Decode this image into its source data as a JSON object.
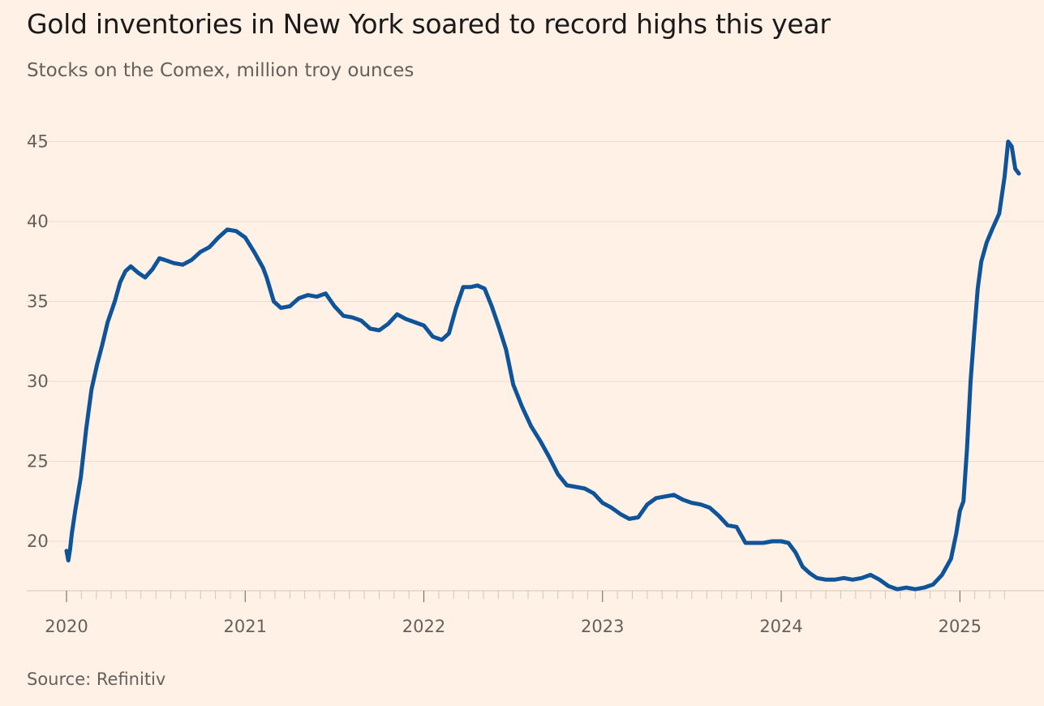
{
  "title": "Gold inventories in New York soared to record highs this year",
  "subtitle": "Stocks on the Comex, million troy ounces",
  "source": "Source: Refinitiv",
  "colors": {
    "background": "#fff1e5",
    "line": "#0f5499",
    "grid": "#e9decf",
    "text": "#66605c"
  },
  "chart_data": {
    "type": "line",
    "title": "Gold inventories in New York soared to record highs this year",
    "subtitle": "Stocks on the Comex, million troy ounces",
    "xlabel": "",
    "ylabel": "",
    "ylim": [
      17,
      45
    ],
    "yticks": [
      20,
      25,
      30,
      35,
      40,
      45
    ],
    "xlim": [
      2020.0,
      2025.33
    ],
    "xticks": [
      {
        "value": 2020,
        "label": "2020"
      },
      {
        "value": 2021,
        "label": "2021"
      },
      {
        "value": 2022,
        "label": "2022"
      },
      {
        "value": 2023,
        "label": "2023"
      },
      {
        "value": 2024,
        "label": "2024"
      },
      {
        "value": 2025,
        "label": "2025"
      }
    ],
    "grid": "horizontal",
    "legend": "none",
    "series": [
      {
        "name": "",
        "x": [
          2020.0,
          2020.01,
          2020.02,
          2020.03,
          2020.05,
          2020.08,
          2020.11,
          2020.14,
          2020.17,
          2020.2,
          2020.23,
          2020.27,
          2020.3,
          2020.33,
          2020.36,
          2020.4,
          2020.44,
          2020.48,
          2020.52,
          2020.55,
          2020.6,
          2020.65,
          2020.7,
          2020.75,
          2020.8,
          2020.85,
          2020.9,
          2020.95,
          2021.0,
          2021.05,
          2021.1,
          2021.12,
          2021.16,
          2021.2,
          2021.25,
          2021.3,
          2021.35,
          2021.4,
          2021.45,
          2021.5,
          2021.55,
          2021.6,
          2021.65,
          2021.7,
          2021.75,
          2021.8,
          2021.85,
          2021.9,
          2021.95,
          2022.0,
          2022.05,
          2022.1,
          2022.14,
          2022.18,
          2022.22,
          2022.26,
          2022.3,
          2022.34,
          2022.38,
          2022.42,
          2022.46,
          2022.5,
          2022.55,
          2022.6,
          2022.65,
          2022.7,
          2022.75,
          2022.8,
          2022.85,
          2022.9,
          2022.95,
          2023.0,
          2023.05,
          2023.1,
          2023.15,
          2023.2,
          2023.25,
          2023.3,
          2023.35,
          2023.4,
          2023.45,
          2023.5,
          2023.55,
          2023.6,
          2023.65,
          2023.7,
          2023.75,
          2023.8,
          2023.85,
          2023.9,
          2023.95,
          2024.0,
          2024.04,
          2024.08,
          2024.12,
          2024.16,
          2024.2,
          2024.25,
          2024.3,
          2024.35,
          2024.4,
          2024.45,
          2024.5,
          2024.55,
          2024.6,
          2024.65,
          2024.7,
          2024.75,
          2024.8,
          2024.85,
          2024.9,
          2024.95,
          2024.98,
          2025.0,
          2025.02,
          2025.04,
          2025.06,
          2025.08,
          2025.1,
          2025.12,
          2025.15,
          2025.18,
          2025.22,
          2025.25,
          2025.27,
          2025.29,
          2025.31,
          2025.33
        ],
        "values": [
          19.4,
          18.8,
          19.5,
          20.5,
          22.0,
          24.0,
          27.0,
          29.5,
          31.0,
          32.3,
          33.7,
          35.0,
          36.2,
          36.9,
          37.2,
          36.8,
          36.5,
          37.0,
          37.7,
          37.6,
          37.4,
          37.3,
          37.6,
          38.1,
          38.4,
          39.0,
          39.5,
          39.4,
          39.0,
          38.1,
          37.1,
          36.5,
          35.0,
          34.6,
          34.7,
          35.2,
          35.4,
          35.3,
          35.5,
          34.7,
          34.1,
          34.0,
          33.8,
          33.3,
          33.2,
          33.6,
          34.2,
          33.9,
          33.7,
          33.5,
          32.8,
          32.6,
          33.0,
          34.6,
          35.9,
          35.9,
          36.0,
          35.8,
          34.7,
          33.4,
          32.0,
          29.8,
          28.4,
          27.2,
          26.3,
          25.3,
          24.2,
          23.5,
          23.4,
          23.3,
          23.0,
          22.4,
          22.1,
          21.7,
          21.4,
          21.5,
          22.3,
          22.7,
          22.8,
          22.9,
          22.6,
          22.4,
          22.3,
          22.1,
          21.6,
          21.0,
          20.9,
          19.9,
          19.9,
          19.9,
          20.0,
          20.0,
          19.9,
          19.3,
          18.4,
          18.0,
          17.7,
          17.6,
          17.6,
          17.7,
          17.6,
          17.7,
          17.9,
          17.6,
          17.2,
          17.0,
          17.1,
          17.0,
          17.1,
          17.3,
          17.9,
          18.9,
          20.5,
          21.9,
          22.5,
          25.8,
          30.0,
          33.0,
          35.8,
          37.5,
          38.7,
          39.5,
          40.5,
          42.8,
          45.0,
          44.7,
          43.3,
          43.0
        ]
      }
    ]
  }
}
